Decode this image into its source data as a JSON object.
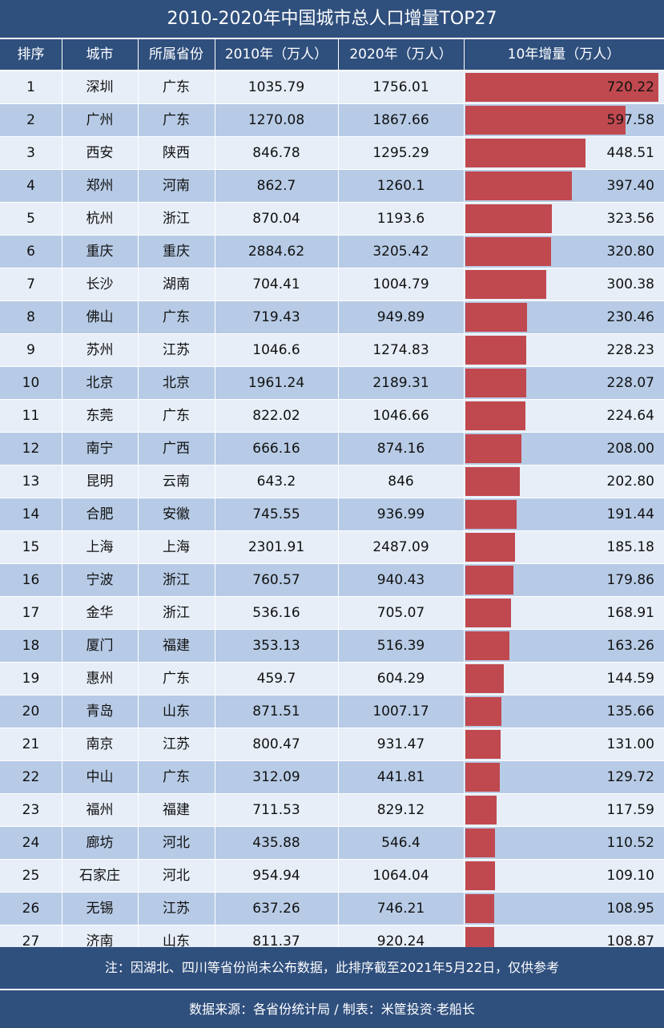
{
  "title": "2010-2020年中国城市总人口增量TOP27",
  "headers": [
    "排序",
    "城市",
    "所属省份",
    "2010年（万人）",
    "2020年（万人）",
    "10年增量（万人）"
  ],
  "colors": {
    "header_bg": "#2f4f7d",
    "row_light": "#e7eef8",
    "row_dark": "#b7cbe6",
    "bar": "#c0494f"
  },
  "chart_data": {
    "type": "table",
    "bar_max": 720.22,
    "rows": [
      {
        "rank": "1",
        "city": "深圳",
        "province": "广东",
        "pop2010": "1035.79",
        "pop2020": "1756.01",
        "increase": "720.22",
        "inc": 720.22
      },
      {
        "rank": "2",
        "city": "广州",
        "province": "广东",
        "pop2010": "1270.08",
        "pop2020": "1867.66",
        "increase": "597.58",
        "inc": 597.58
      },
      {
        "rank": "3",
        "city": "西安",
        "province": "陕西",
        "pop2010": "846.78",
        "pop2020": "1295.29",
        "increase": "448.51",
        "inc": 448.51
      },
      {
        "rank": "4",
        "city": "郑州",
        "province": "河南",
        "pop2010": "862.7",
        "pop2020": "1260.1",
        "increase": "397.40",
        "inc": 397.4
      },
      {
        "rank": "5",
        "city": "杭州",
        "province": "浙江",
        "pop2010": "870.04",
        "pop2020": "1193.6",
        "increase": "323.56",
        "inc": 323.56
      },
      {
        "rank": "6",
        "city": "重庆",
        "province": "重庆",
        "pop2010": "2884.62",
        "pop2020": "3205.42",
        "increase": "320.80",
        "inc": 320.8
      },
      {
        "rank": "7",
        "city": "长沙",
        "province": "湖南",
        "pop2010": "704.41",
        "pop2020": "1004.79",
        "increase": "300.38",
        "inc": 300.38
      },
      {
        "rank": "8",
        "city": "佛山",
        "province": "广东",
        "pop2010": "719.43",
        "pop2020": "949.89",
        "increase": "230.46",
        "inc": 230.46
      },
      {
        "rank": "9",
        "city": "苏州",
        "province": "江苏",
        "pop2010": "1046.6",
        "pop2020": "1274.83",
        "increase": "228.23",
        "inc": 228.23
      },
      {
        "rank": "10",
        "city": "北京",
        "province": "北京",
        "pop2010": "1961.24",
        "pop2020": "2189.31",
        "increase": "228.07",
        "inc": 228.07
      },
      {
        "rank": "11",
        "city": "东莞",
        "province": "广东",
        "pop2010": "822.02",
        "pop2020": "1046.66",
        "increase": "224.64",
        "inc": 224.64
      },
      {
        "rank": "12",
        "city": "南宁",
        "province": "广西",
        "pop2010": "666.16",
        "pop2020": "874.16",
        "increase": "208.00",
        "inc": 208.0
      },
      {
        "rank": "13",
        "city": "昆明",
        "province": "云南",
        "pop2010": "643.2",
        "pop2020": "846",
        "increase": "202.80",
        "inc": 202.8
      },
      {
        "rank": "14",
        "city": "合肥",
        "province": "安徽",
        "pop2010": "745.55",
        "pop2020": "936.99",
        "increase": "191.44",
        "inc": 191.44
      },
      {
        "rank": "15",
        "city": "上海",
        "province": "上海",
        "pop2010": "2301.91",
        "pop2020": "2487.09",
        "increase": "185.18",
        "inc": 185.18
      },
      {
        "rank": "16",
        "city": "宁波",
        "province": "浙江",
        "pop2010": "760.57",
        "pop2020": "940.43",
        "increase": "179.86",
        "inc": 179.86
      },
      {
        "rank": "17",
        "city": "金华",
        "province": "浙江",
        "pop2010": "536.16",
        "pop2020": "705.07",
        "increase": "168.91",
        "inc": 168.91
      },
      {
        "rank": "18",
        "city": "厦门",
        "province": "福建",
        "pop2010": "353.13",
        "pop2020": "516.39",
        "increase": "163.26",
        "inc": 163.26
      },
      {
        "rank": "19",
        "city": "惠州",
        "province": "广东",
        "pop2010": "459.7",
        "pop2020": "604.29",
        "increase": "144.59",
        "inc": 144.59
      },
      {
        "rank": "20",
        "city": "青岛",
        "province": "山东",
        "pop2010": "871.51",
        "pop2020": "1007.17",
        "increase": "135.66",
        "inc": 135.66
      },
      {
        "rank": "21",
        "city": "南京",
        "province": "江苏",
        "pop2010": "800.47",
        "pop2020": "931.47",
        "increase": "131.00",
        "inc": 131.0
      },
      {
        "rank": "22",
        "city": "中山",
        "province": "广东",
        "pop2010": "312.09",
        "pop2020": "441.81",
        "increase": "129.72",
        "inc": 129.72
      },
      {
        "rank": "23",
        "city": "福州",
        "province": "福建",
        "pop2010": "711.53",
        "pop2020": "829.12",
        "increase": "117.59",
        "inc": 117.59
      },
      {
        "rank": "24",
        "city": "廊坊",
        "province": "河北",
        "pop2010": "435.88",
        "pop2020": "546.4",
        "increase": "110.52",
        "inc": 110.52
      },
      {
        "rank": "25",
        "city": "石家庄",
        "province": "河北",
        "pop2010": "954.94",
        "pop2020": "1064.04",
        "increase": "109.10",
        "inc": 109.1
      },
      {
        "rank": "26",
        "city": "无锡",
        "province": "江苏",
        "pop2010": "637.26",
        "pop2020": "746.21",
        "increase": "108.95",
        "inc": 108.95
      },
      {
        "rank": "27",
        "city": "济南",
        "province": "山东",
        "pop2010": "811.37",
        "pop2020": "920.24",
        "increase": "108.87",
        "inc": 108.87
      }
    ]
  },
  "note": "注：因湖北、四川等省份尚未公布数据，此排序截至2021年5月22日，仅供参考",
  "source": "数据来源：各省份统计局 / 制表：米筐投资·老船长"
}
